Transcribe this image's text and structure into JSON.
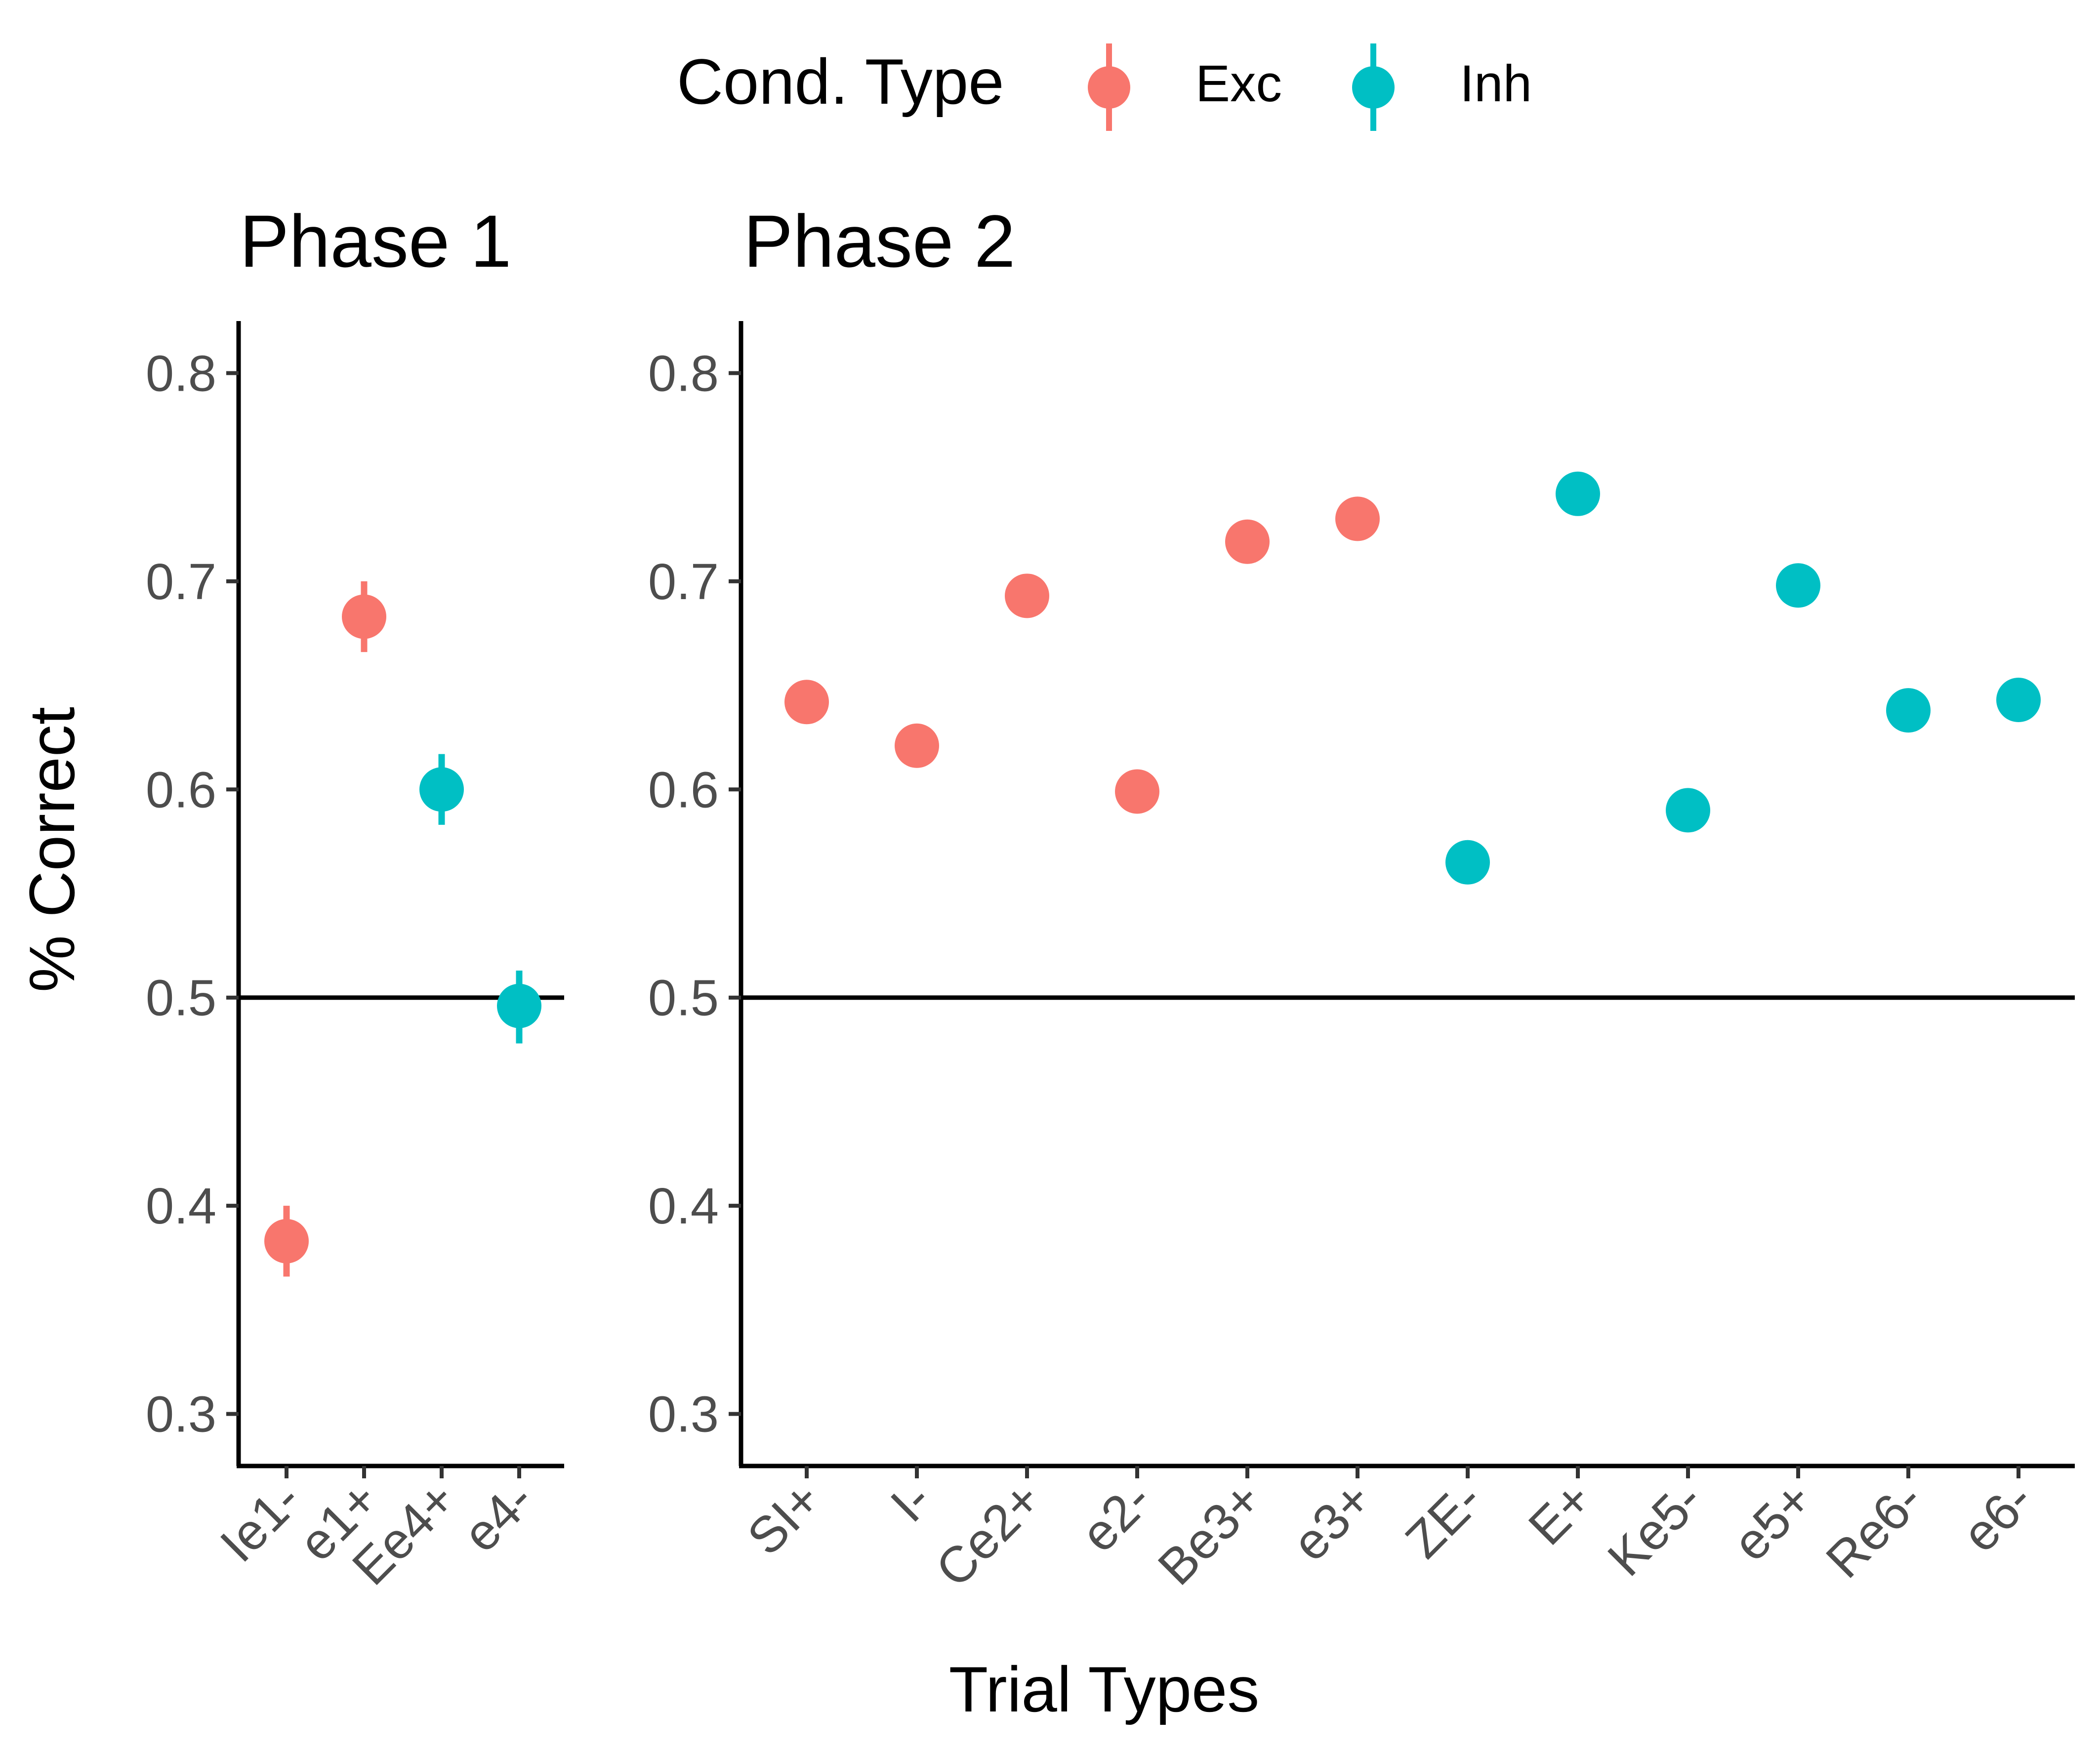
{
  "legend": {
    "title": "Cond. Type",
    "items": [
      {
        "label": "Exc",
        "color": "#F8766D"
      },
      {
        "label": "Inh",
        "color": "#00BFC4"
      }
    ]
  },
  "axes": {
    "ylabel": "% Correct",
    "xlabel": "Trial Types"
  },
  "chart_data": {
    "type": "scatter",
    "ylabel": "% Correct",
    "xlabel": "Trial Types",
    "ylim": [
      0.275,
      0.825
    ],
    "yticks": [
      "0.3",
      "0.4",
      "0.5",
      "0.6",
      "0.7",
      "0.8"
    ],
    "reference_line": 0.5,
    "grid": false,
    "legend_position": "top",
    "panels": [
      {
        "title": "Phase 1",
        "categories": [
          "Ie1-",
          "e1+",
          "Ee4+",
          "e4-"
        ],
        "series": [
          {
            "name": "Exc",
            "color": "#F8766D",
            "points": [
              {
                "x": "Ie1-",
                "y": 0.383,
                "ymin": 0.366,
                "ymax": 0.4
              },
              {
                "x": "e1+",
                "y": 0.683,
                "ymin": 0.666,
                "ymax": 0.7
              }
            ]
          },
          {
            "name": "Inh",
            "color": "#00BFC4",
            "points": [
              {
                "x": "Ee4+",
                "y": 0.6,
                "ymin": 0.583,
                "ymax": 0.617
              },
              {
                "x": "e4-",
                "y": 0.496,
                "ymin": 0.478,
                "ymax": 0.513
              }
            ]
          }
        ]
      },
      {
        "title": "Phase 2",
        "categories": [
          "SI+",
          "I-",
          "Ce2+",
          "e2-",
          "Be3+",
          "e3+",
          "ZE-",
          "E+",
          "Ke5-",
          "e5+",
          "Re6-",
          "e6-"
        ],
        "series": [
          {
            "name": "Exc",
            "color": "#F8766D",
            "points": [
              {
                "x": "SI+",
                "y": 0.642
              },
              {
                "x": "I-",
                "y": 0.621
              },
              {
                "x": "Ce2+",
                "y": 0.693
              },
              {
                "x": "e2-",
                "y": 0.599
              },
              {
                "x": "Be3+",
                "y": 0.719
              },
              {
                "x": "e3+",
                "y": 0.73
              }
            ]
          },
          {
            "name": "Inh",
            "color": "#00BFC4",
            "points": [
              {
                "x": "ZE-",
                "y": 0.565
              },
              {
                "x": "E+",
                "y": 0.742
              },
              {
                "x": "Ke5-",
                "y": 0.59
              },
              {
                "x": "e5+",
                "y": 0.698
              },
              {
                "x": "Re6-",
                "y": 0.638
              },
              {
                "x": "e6-",
                "y": 0.643
              }
            ]
          }
        ]
      }
    ]
  }
}
